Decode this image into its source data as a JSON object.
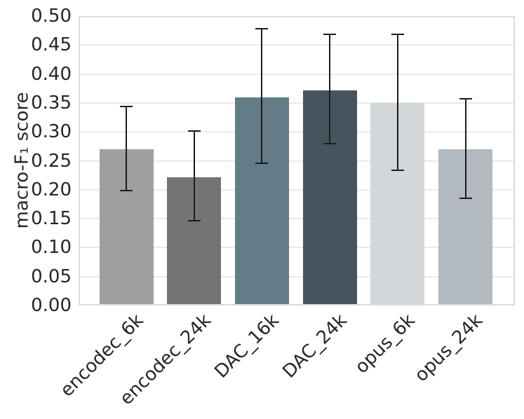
{
  "figure": {
    "background": "#ffffff",
    "text_color": "#262626",
    "grid_color": "#e9e9e9",
    "spine_color": "#dcdcdc",
    "error_color": "#1c1c1c"
  },
  "chart_data": {
    "type": "bar",
    "title": "",
    "xlabel": "",
    "ylabel": "macro-F₁ score",
    "categories": [
      "encodec_6k",
      "encodec_24k",
      "DAC_16k",
      "DAC_24k",
      "opus_6k",
      "opus_24k"
    ],
    "values": [
      0.27,
      0.222,
      0.36,
      0.372,
      0.35,
      0.27
    ],
    "error_low": [
      0.198,
      0.147,
      0.246,
      0.28,
      0.234,
      0.185
    ],
    "error_high": [
      0.344,
      0.302,
      0.478,
      0.468,
      0.468,
      0.357
    ],
    "bar_colors": [
      "#9f9f9f",
      "#747474",
      "#647b88",
      "#46545e",
      "#d2d7da",
      "#b2b9c0"
    ],
    "ylim": [
      0,
      0.5
    ],
    "ytick_labels": [
      "0.00",
      "0.05",
      "0.10",
      "0.15",
      "0.20",
      "0.25",
      "0.30",
      "0.35",
      "0.40",
      "0.45",
      "0.50"
    ],
    "grid": true,
    "legend_position": "none"
  }
}
